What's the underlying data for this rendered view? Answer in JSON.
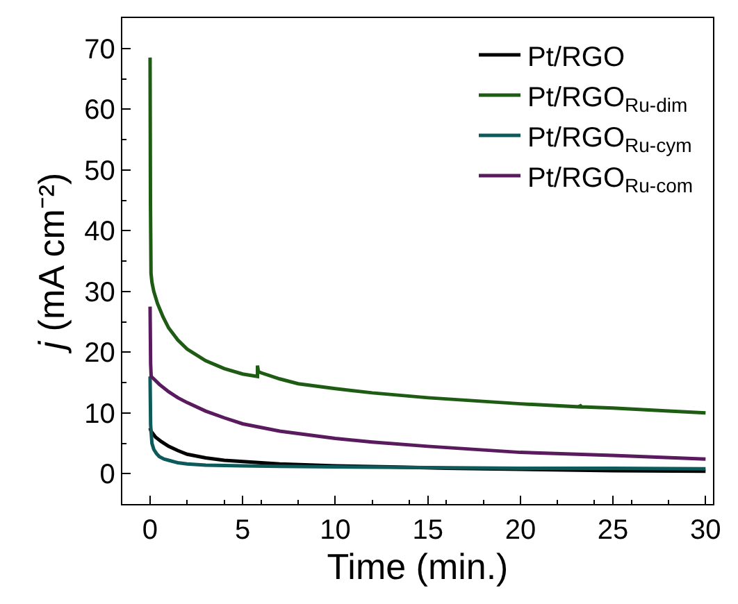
{
  "chart_data": {
    "type": "line",
    "xlabel": "Time (min.)",
    "ylabel": "j (mA cm⁻²)",
    "xlim": [
      -1.5,
      30.4
    ],
    "ylim": [
      -5,
      75
    ],
    "xticks": [
      0,
      5,
      10,
      15,
      20,
      25,
      30
    ],
    "yticks": [
      0,
      10,
      20,
      30,
      40,
      50,
      60,
      70
    ],
    "legend": "top right",
    "marker": "none",
    "line_style": "solid",
    "series": [
      {
        "name": "Pt/RGO",
        "color": "#000000",
        "x": [
          0,
          0.05,
          0.3,
          0.6,
          1,
          1.5,
          2,
          3,
          4,
          5,
          7,
          10,
          13,
          16,
          20,
          25,
          30
        ],
        "values": [
          7.5,
          7,
          6,
          5.3,
          4.5,
          3.8,
          3.2,
          2.6,
          2.2,
          2,
          1.6,
          1.3,
          1.1,
          0.9,
          0.7,
          0.5,
          0.4
        ]
      },
      {
        "name": "Pt/RGO$_{Ru-dim}$",
        "color": "#1e5c14",
        "x": [
          0,
          0.02,
          0.05,
          0.1,
          0.2,
          0.4,
          0.7,
          1,
          1.5,
          2,
          3,
          4,
          5,
          5.8,
          5.8,
          5.85,
          6,
          7,
          8,
          10,
          12,
          15,
          18,
          20,
          23.2,
          23.2,
          23.3,
          25,
          28,
          30
        ],
        "values": [
          68.5,
          45,
          33,
          31.5,
          30,
          28,
          25.8,
          24,
          22,
          20.5,
          18.6,
          17.3,
          16.4,
          16,
          17.8,
          16.8,
          16.6,
          15.6,
          14.8,
          14,
          13.3,
          12.5,
          11.9,
          11.5,
          11,
          11.3,
          11,
          10.8,
          10.3,
          10
        ]
      },
      {
        "name": "Pt/RGO$_{Ru-cym}$",
        "color": "#0e5a5a",
        "x": [
          0,
          0.03,
          0.1,
          0.2,
          0.35,
          0.5,
          0.75,
          1,
          1.5,
          2,
          3,
          5,
          7,
          10,
          15,
          20,
          25,
          30
        ],
        "values": [
          16,
          8,
          5,
          4,
          3.3,
          2.8,
          2.4,
          2.2,
          1.8,
          1.6,
          1.4,
          1.3,
          1.2,
          1.1,
          1,
          0.9,
          0.9,
          0.8
        ]
      },
      {
        "name": "Pt/RGO$_{Ru-com}$",
        "color": "#5a1a5e",
        "x": [
          0,
          0.03,
          0.06,
          0.2,
          0.5,
          1,
          1.5,
          2,
          3,
          4,
          5,
          7,
          10,
          12,
          15,
          18,
          20,
          25,
          30
        ],
        "values": [
          27.5,
          18,
          16,
          15.6,
          14.7,
          13.5,
          12.5,
          11.7,
          10.3,
          9.2,
          8.2,
          7,
          5.8,
          5.2,
          4.5,
          3.9,
          3.5,
          3,
          2.4
        ]
      }
    ]
  }
}
